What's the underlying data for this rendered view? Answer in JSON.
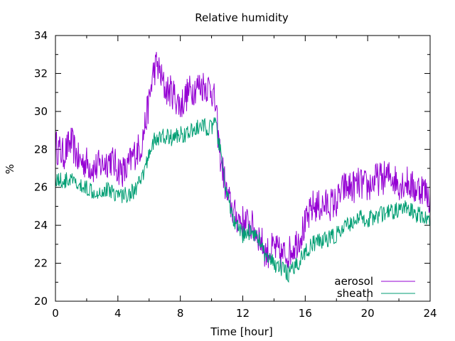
{
  "chart_data": {
    "type": "line",
    "title": "Relative humidity",
    "xlabel": "Time [hour]",
    "ylabel": "%",
    "xlim": [
      0,
      24
    ],
    "ylim": [
      20,
      34
    ],
    "xticks": [
      0,
      4,
      8,
      12,
      16,
      20,
      24
    ],
    "yticks": [
      20,
      22,
      24,
      26,
      28,
      30,
      32,
      34
    ],
    "grid": false,
    "legend_position": "bottom-right",
    "series": [
      {
        "name": "aerosol",
        "color": "#9400d3",
        "x": [
          0,
          0.5,
          1,
          1.5,
          2,
          2.5,
          3,
          3.5,
          4,
          4.5,
          5,
          5.5,
          6,
          6.25,
          6.5,
          7,
          7.5,
          8,
          8.5,
          9,
          9.5,
          10,
          10.25,
          10.5,
          11,
          11.5,
          12,
          12.5,
          13,
          13.5,
          14,
          14.5,
          15,
          15.5,
          16,
          16.5,
          17,
          17.5,
          18,
          18.5,
          19,
          19.5,
          20,
          20.5,
          21,
          21.5,
          22,
          22.5,
          23,
          23.5,
          24
        ],
        "y": [
          28.2,
          27.7,
          28.4,
          27.4,
          27.3,
          27.0,
          27.2,
          27.5,
          27.0,
          26.8,
          27.7,
          28.2,
          30.5,
          32.0,
          32.5,
          31.2,
          31.0,
          30.3,
          31.0,
          31.3,
          31.4,
          31.2,
          30.3,
          28.0,
          25.5,
          24.5,
          24.2,
          24.0,
          23.5,
          22.5,
          22.8,
          22.4,
          22.6,
          23.2,
          24.0,
          25.0,
          25.0,
          25.1,
          25.2,
          26.0,
          26.0,
          26.2,
          26.0,
          26.4,
          26.5,
          26.6,
          26.2,
          26.3,
          25.9,
          26.0,
          25.4
        ]
      },
      {
        "name": "sheath",
        "color": "#009e73",
        "x": [
          0,
          0.5,
          1,
          1.5,
          2,
          2.5,
          3,
          3.5,
          4,
          4.5,
          5,
          5.5,
          6,
          6.25,
          6.5,
          7,
          7.5,
          8,
          8.5,
          9,
          9.5,
          10,
          10.25,
          10.5,
          11,
          11.5,
          12,
          12.5,
          13,
          13.5,
          14,
          14.5,
          15,
          15.5,
          16,
          16.5,
          17,
          17.5,
          18,
          18.5,
          19,
          19.5,
          20,
          20.5,
          21,
          21.5,
          22,
          22.5,
          23,
          23.5,
          24
        ],
        "y": [
          26.5,
          26.3,
          26.4,
          26.0,
          26.0,
          25.8,
          25.8,
          25.9,
          25.6,
          25.6,
          25.8,
          26.3,
          27.8,
          28.4,
          28.5,
          28.7,
          28.6,
          28.8,
          28.8,
          29.1,
          29.2,
          29.1,
          29.4,
          28.2,
          25.5,
          24.0,
          23.5,
          23.7,
          23.4,
          22.2,
          22.0,
          21.7,
          21.4,
          22.0,
          22.6,
          23.0,
          23.2,
          23.3,
          23.5,
          23.8,
          24.2,
          24.4,
          24.3,
          24.5,
          24.6,
          24.7,
          24.8,
          24.9,
          24.6,
          24.5,
          24.2
        ]
      }
    ]
  }
}
